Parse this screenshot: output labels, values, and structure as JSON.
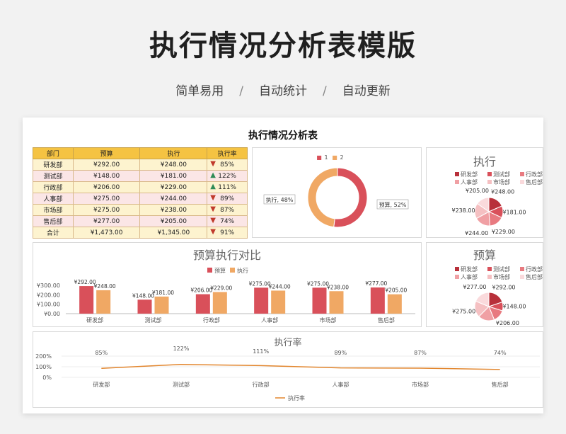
{
  "hero": {
    "title": "执行情况分析表模版",
    "subtitle_items": [
      "简单易用",
      "自动统计",
      "自动更新"
    ],
    "separator": "/"
  },
  "sheet": {
    "title": "执行情况分析表",
    "table": {
      "headers": [
        "部门",
        "预算",
        "执行",
        "执行率"
      ],
      "rows": [
        {
          "dept": "研发部",
          "budget": "¥292.00",
          "actual": "¥248.00",
          "rate": "85%",
          "trend": "down"
        },
        {
          "dept": "测试部",
          "budget": "¥148.00",
          "actual": "¥181.00",
          "rate": "122%",
          "trend": "up"
        },
        {
          "dept": "行政部",
          "budget": "¥206.00",
          "actual": "¥229.00",
          "rate": "111%",
          "trend": "up"
        },
        {
          "dept": "人事部",
          "budget": "¥275.00",
          "actual": "¥244.00",
          "rate": "89%",
          "trend": "down"
        },
        {
          "dept": "市场部",
          "budget": "¥275.00",
          "actual": "¥238.00",
          "rate": "87%",
          "trend": "down"
        },
        {
          "dept": "售后部",
          "budget": "¥277.00",
          "actual": "¥205.00",
          "rate": "74%",
          "trend": "down"
        },
        {
          "dept": "合计",
          "budget": "¥1,473.00",
          "actual": "¥1,345.00",
          "rate": "91%",
          "trend": "down"
        }
      ]
    }
  },
  "colors": {
    "budget": "#d9505a",
    "actual": "#f0a864",
    "line": "#e2862e",
    "header": "#f5c342",
    "up": "#2e8b57",
    "down": "#c0392b"
  },
  "chart_data": [
    {
      "type": "pie",
      "subtype": "donut",
      "legend": [
        "1",
        "2"
      ],
      "labels": [
        "执行, 48%",
        "预算, 52%"
      ],
      "values": [
        48,
        52
      ]
    },
    {
      "type": "pie",
      "title": "执行",
      "legend": [
        "研发部",
        "测试部",
        "行政部",
        "人事部",
        "市场部",
        "售后部"
      ],
      "values": [
        248,
        181,
        229,
        244,
        238,
        205
      ],
      "labels": [
        "¥248.00",
        "¥181.00",
        "¥229.00",
        "¥244.00",
        "¥238.00",
        "¥205.00"
      ]
    },
    {
      "type": "bar",
      "title": "预算执行对比",
      "categories": [
        "研发部",
        "测试部",
        "行政部",
        "人事部",
        "市场部",
        "售后部"
      ],
      "series": [
        {
          "name": "预算",
          "values": [
            292,
            148,
            206,
            275,
            275,
            277
          ],
          "labels": [
            "¥292.00",
            "¥148.00",
            "¥206.00",
            "¥275.00",
            "¥275.00",
            "¥277.00"
          ]
        },
        {
          "name": "执行",
          "values": [
            248,
            181,
            229,
            244,
            238,
            205
          ],
          "labels": [
            "¥248.00",
            "¥181.00",
            "¥229.00",
            "¥244.00",
            "¥238.00",
            "¥205.00"
          ]
        }
      ],
      "yticks": [
        "¥300.00",
        "¥200.00",
        "¥100.00",
        "¥0.00"
      ],
      "ylim": [
        0,
        300
      ]
    },
    {
      "type": "pie",
      "title": "预算",
      "legend": [
        "研发部",
        "测试部",
        "行政部",
        "人事部",
        "市场部",
        "售后部"
      ],
      "values": [
        292,
        148,
        206,
        275,
        275,
        277
      ],
      "labels": [
        "¥292.00",
        "¥148.00",
        "¥206.00",
        "¥275.00",
        "¥275.00",
        "¥277.00"
      ]
    },
    {
      "type": "line",
      "title": "执行率",
      "categories": [
        "研发部",
        "测试部",
        "行政部",
        "人事部",
        "市场部",
        "售后部"
      ],
      "series": [
        {
          "name": "执行率",
          "values": [
            85,
            122,
            111,
            89,
            87,
            74
          ],
          "labels": [
            "85%",
            "122%",
            "111%",
            "89%",
            "87%",
            "74%"
          ]
        }
      ],
      "yticks": [
        "200%",
        "100%",
        "0%"
      ],
      "ylim": [
        0,
        200
      ]
    }
  ]
}
